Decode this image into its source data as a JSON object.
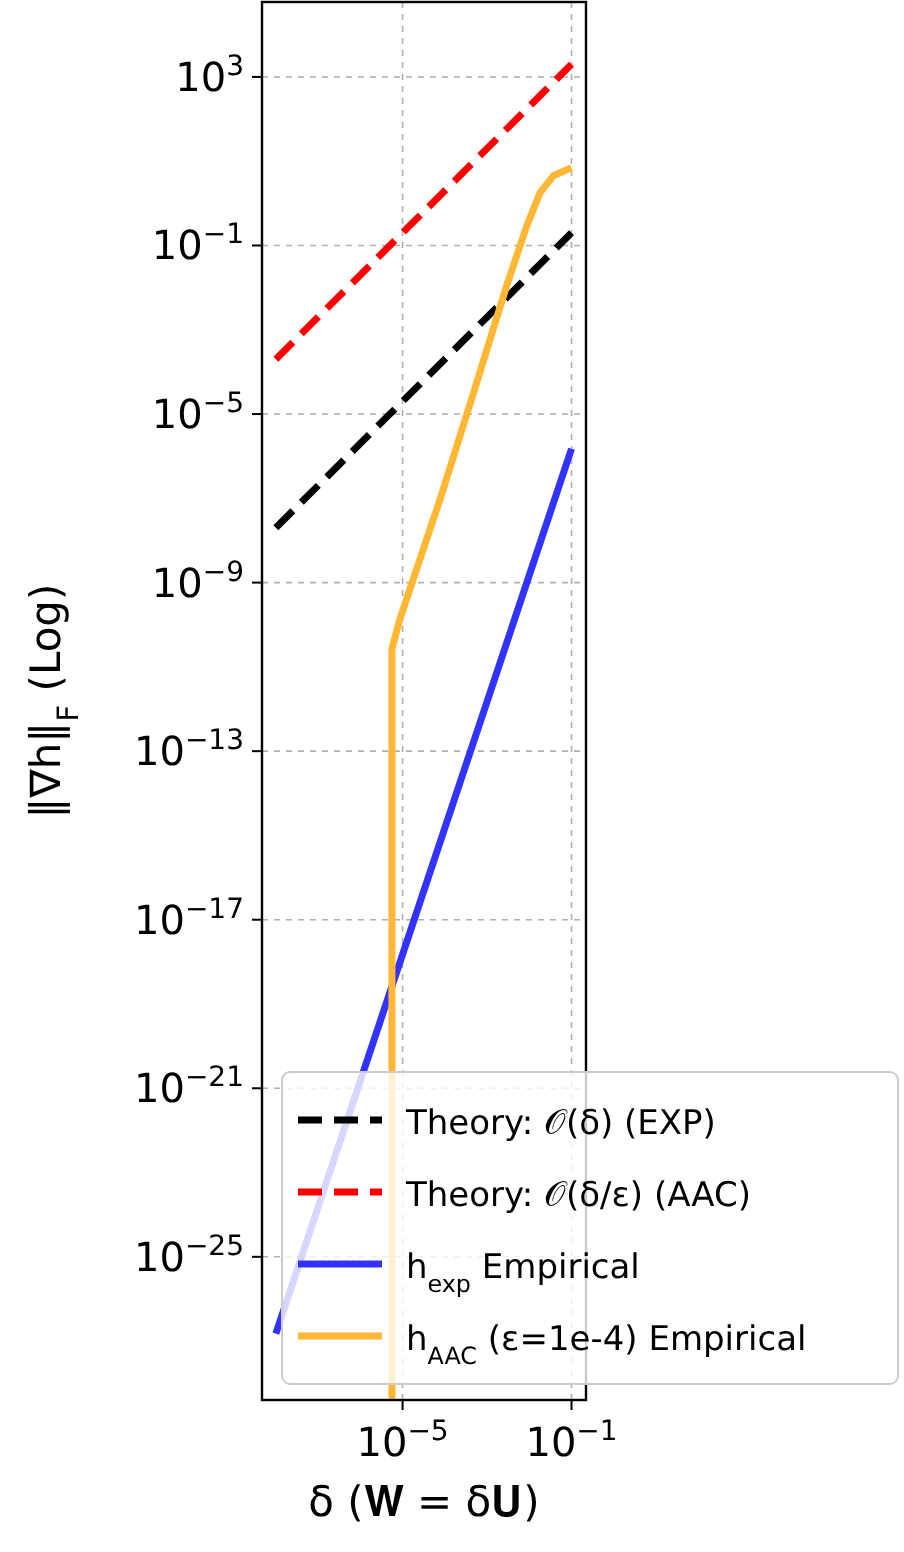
{
  "chart_data": {
    "type": "line",
    "xlabel": "δ (𝐖 = δ𝐔)",
    "ylabel": "‖∇h‖$_{F}$ (Log)",
    "log": "xy",
    "grid": true,
    "legend": "bottom right",
    "xlim": [
      4.7e-09,
      0.22
    ],
    "ylim": [
      4e-29,
      60000.0
    ],
    "xticks": [
      {
        "value": 1e-05,
        "label": "10$^{−5}$"
      },
      {
        "value": 0.1,
        "label": "10$^{−1}$"
      }
    ],
    "yticks": [
      {
        "value": 1e-25,
        "label": "10$^{−25}$"
      },
      {
        "value": 1e-21,
        "label": "10$^{−21}$"
      },
      {
        "value": 1e-17,
        "label": "10$^{−17}$"
      },
      {
        "value": 1e-13,
        "label": "10$^{−13}$"
      },
      {
        "value": 1e-09,
        "label": "10$^{−9}$"
      },
      {
        "value": 1e-05,
        "label": "10$^{−5}$"
      },
      {
        "value": 0.1,
        "label": "10$^{−1}$"
      },
      {
        "value": 1000,
        "label": "10$^{3}$"
      }
    ],
    "series": [
      {
        "name": "Theory: 𝒪(δ) (EXP)",
        "color": "#000000",
        "line_style": "dashed",
        "x": [
          1e-08,
          0.1
        ],
        "values": [
          2e-08,
          0.2
        ]
      },
      {
        "name": "Theory: 𝒪(δ/ε) (AAC)",
        "color": "#ff0000",
        "line_style": "dashed",
        "x": [
          1e-08,
          0.1
        ],
        "values": [
          0.0002,
          2000
        ]
      },
      {
        "name": "h$_{exp}$ Empirical",
        "color": "#3333ff",
        "line_style": "solid",
        "x": [
          1e-08,
          0.1
        ],
        "values": [
          1.5e-27,
          1.5e-06
        ]
      },
      {
        "name": "h$_{AAC}$ (ε=1e-4) Empirical",
        "color": "#ffb734",
        "line_style": "solid",
        "x": [
          5.6e-06,
          5.6e-06,
          8.7e-06,
          7.8e-05,
          0.00048,
          0.0029,
          0.0087,
          0.018,
          0.037,
          0.1
        ],
        "values": [
          4e-29,
          2.7e-11,
          1.4e-10,
          9.8e-08,
          3.2e-05,
          0.011,
          0.29,
          1.8,
          4.5,
          7
        ]
      }
    ]
  }
}
